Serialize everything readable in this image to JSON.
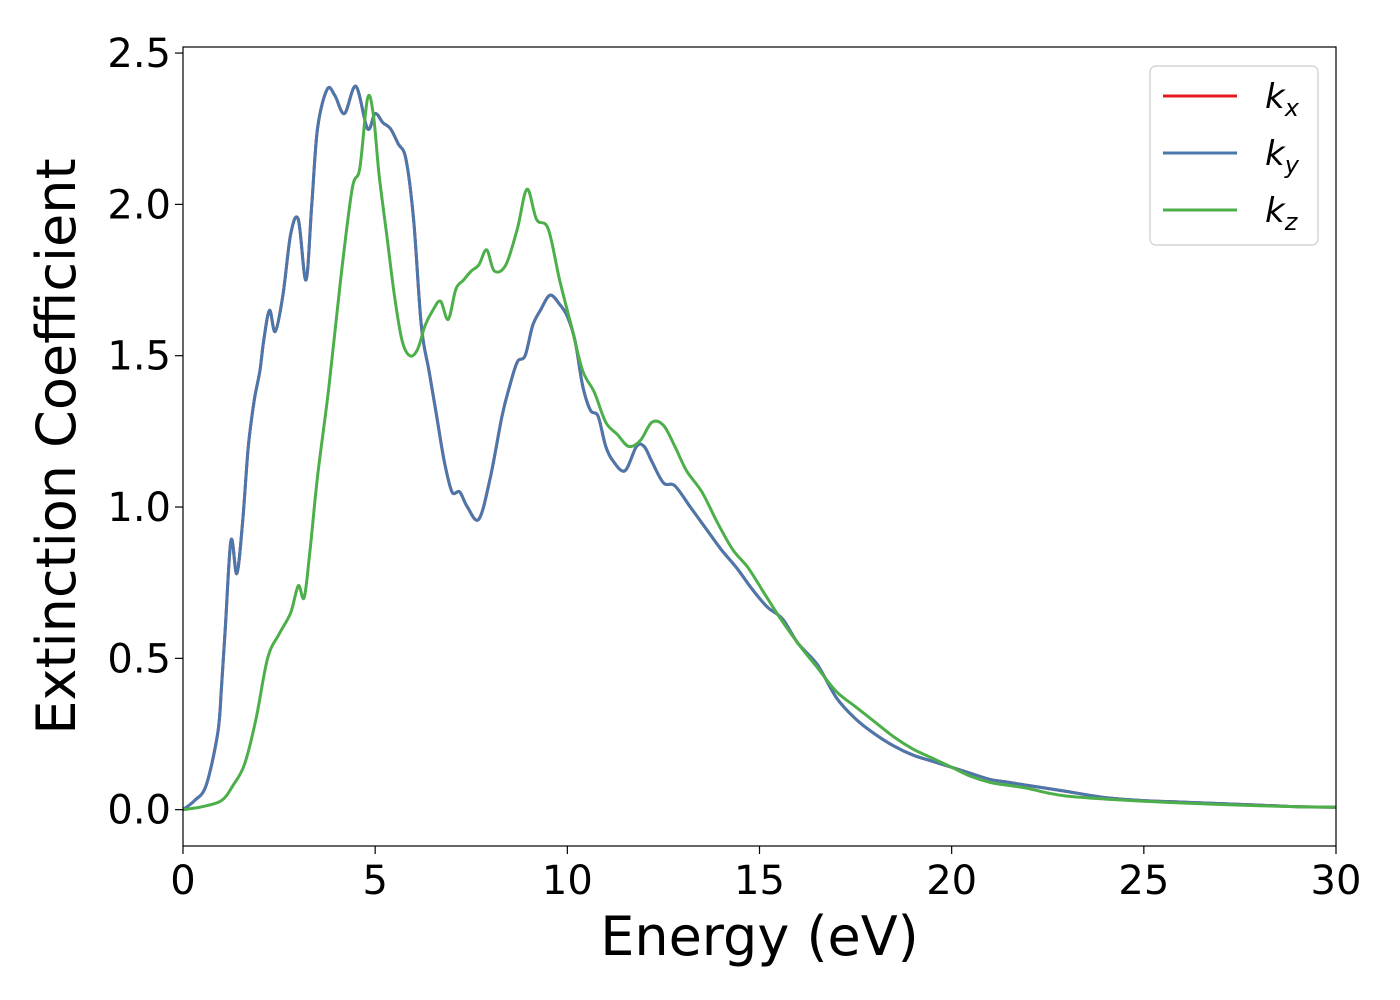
{
  "chart_data": {
    "type": "line",
    "title": "",
    "xlabel": "Energy (eV)",
    "ylabel": "Extinction Coefficient",
    "xlim": [
      0,
      30
    ],
    "ylim": [
      -0.12,
      2.52
    ],
    "xticks": [
      0,
      5,
      10,
      15,
      20,
      25,
      30
    ],
    "xtick_labels": [
      "0",
      "5",
      "10",
      "15",
      "20",
      "25",
      "30"
    ],
    "yticks": [
      0.0,
      0.5,
      1.0,
      1.5,
      2.0,
      2.5
    ],
    "ytick_labels": [
      "0.0",
      "0.5",
      "1.0",
      "1.5",
      "2.0",
      "2.5"
    ],
    "grid": false,
    "legend_position": "top-right",
    "series": [
      {
        "name": "k_x",
        "legend_main": "k",
        "legend_sub": "x",
        "color": "#e41a1c",
        "x": [
          0,
          0.3,
          0.6,
          0.9,
          1.0,
          1.1,
          1.25,
          1.4,
          1.55,
          1.7,
          1.85,
          2.0,
          2.1,
          2.25,
          2.4,
          2.6,
          2.8,
          3.0,
          3.2,
          3.35,
          3.5,
          3.75,
          3.95,
          4.2,
          4.5,
          4.8,
          5.0,
          5.2,
          5.4,
          5.6,
          5.8,
          6.0,
          6.2,
          6.4,
          6.6,
          6.8,
          7.0,
          7.2,
          7.4,
          7.7,
          8.0,
          8.3,
          8.5,
          8.7,
          8.9,
          9.1,
          9.3,
          9.55,
          9.8,
          10.0,
          10.2,
          10.4,
          10.6,
          10.8,
          11.0,
          11.2,
          11.5,
          11.8,
          12.0,
          12.2,
          12.5,
          12.8,
          13.2,
          13.6,
          14.0,
          14.4,
          14.8,
          15.2,
          15.6,
          16.0,
          16.5,
          17.0,
          17.5,
          18.0,
          18.5,
          19.0,
          19.5,
          20.0,
          20.5,
          21.0,
          21.5,
          22.0,
          22.5,
          23.0,
          24.0,
          25.0,
          26.0,
          27.0,
          28.0,
          29.0,
          30.0
        ],
        "y": [
          0.0,
          0.03,
          0.08,
          0.25,
          0.4,
          0.6,
          0.89,
          0.78,
          0.95,
          1.2,
          1.35,
          1.45,
          1.55,
          1.65,
          1.58,
          1.7,
          1.9,
          1.95,
          1.75,
          2.0,
          2.25,
          2.38,
          2.36,
          2.3,
          2.39,
          2.25,
          2.3,
          2.27,
          2.25,
          2.2,
          2.15,
          1.95,
          1.6,
          1.45,
          1.3,
          1.15,
          1.05,
          1.05,
          1.0,
          0.96,
          1.1,
          1.3,
          1.4,
          1.48,
          1.5,
          1.6,
          1.65,
          1.7,
          1.67,
          1.63,
          1.55,
          1.4,
          1.32,
          1.3,
          1.2,
          1.15,
          1.12,
          1.2,
          1.2,
          1.15,
          1.08,
          1.07,
          1.0,
          0.93,
          0.86,
          0.8,
          0.73,
          0.67,
          0.63,
          0.55,
          0.48,
          0.37,
          0.3,
          0.25,
          0.21,
          0.18,
          0.16,
          0.14,
          0.12,
          0.1,
          0.09,
          0.08,
          0.07,
          0.06,
          0.04,
          0.03,
          0.025,
          0.02,
          0.015,
          0.01,
          0.008
        ]
      },
      {
        "name": "k_y",
        "legend_main": "k",
        "legend_sub": "y",
        "color": "#4a78ad",
        "x": [
          0,
          0.3,
          0.6,
          0.9,
          1.0,
          1.1,
          1.25,
          1.4,
          1.55,
          1.7,
          1.85,
          2.0,
          2.1,
          2.25,
          2.4,
          2.6,
          2.8,
          3.0,
          3.2,
          3.35,
          3.5,
          3.75,
          3.95,
          4.2,
          4.5,
          4.8,
          5.0,
          5.2,
          5.4,
          5.6,
          5.8,
          6.0,
          6.2,
          6.4,
          6.6,
          6.8,
          7.0,
          7.2,
          7.4,
          7.7,
          8.0,
          8.3,
          8.5,
          8.7,
          8.9,
          9.1,
          9.3,
          9.55,
          9.8,
          10.0,
          10.2,
          10.4,
          10.6,
          10.8,
          11.0,
          11.2,
          11.5,
          11.8,
          12.0,
          12.2,
          12.5,
          12.8,
          13.2,
          13.6,
          14.0,
          14.4,
          14.8,
          15.2,
          15.6,
          16.0,
          16.5,
          17.0,
          17.5,
          18.0,
          18.5,
          19.0,
          19.5,
          20.0,
          20.5,
          21.0,
          21.5,
          22.0,
          22.5,
          23.0,
          24.0,
          25.0,
          26.0,
          27.0,
          28.0,
          29.0,
          30.0
        ],
        "y": [
          0.0,
          0.03,
          0.08,
          0.25,
          0.4,
          0.6,
          0.89,
          0.78,
          0.95,
          1.2,
          1.35,
          1.45,
          1.55,
          1.65,
          1.58,
          1.7,
          1.9,
          1.95,
          1.75,
          2.0,
          2.25,
          2.38,
          2.36,
          2.3,
          2.39,
          2.25,
          2.3,
          2.27,
          2.25,
          2.2,
          2.15,
          1.95,
          1.6,
          1.45,
          1.3,
          1.15,
          1.05,
          1.05,
          1.0,
          0.96,
          1.1,
          1.3,
          1.4,
          1.48,
          1.5,
          1.6,
          1.65,
          1.7,
          1.67,
          1.63,
          1.55,
          1.4,
          1.32,
          1.3,
          1.2,
          1.15,
          1.12,
          1.2,
          1.2,
          1.15,
          1.08,
          1.07,
          1.0,
          0.93,
          0.86,
          0.8,
          0.73,
          0.67,
          0.63,
          0.55,
          0.48,
          0.37,
          0.3,
          0.25,
          0.21,
          0.18,
          0.16,
          0.14,
          0.12,
          0.1,
          0.09,
          0.08,
          0.07,
          0.06,
          0.04,
          0.03,
          0.025,
          0.02,
          0.015,
          0.01,
          0.008
        ]
      },
      {
        "name": "k_z",
        "legend_main": "k",
        "legend_sub": "z",
        "color": "#4daf4a",
        "x": [
          0,
          0.5,
          1.0,
          1.3,
          1.6,
          1.9,
          2.2,
          2.5,
          2.8,
          3.0,
          3.15,
          3.3,
          3.5,
          3.8,
          4.1,
          4.4,
          4.6,
          4.8,
          4.95,
          5.1,
          5.3,
          5.5,
          5.7,
          5.9,
          6.1,
          6.3,
          6.5,
          6.7,
          6.9,
          7.1,
          7.3,
          7.5,
          7.7,
          7.9,
          8.1,
          8.4,
          8.7,
          8.95,
          9.2,
          9.5,
          9.8,
          10.1,
          10.4,
          10.7,
          11.0,
          11.3,
          11.6,
          11.9,
          12.2,
          12.5,
          12.8,
          13.1,
          13.5,
          13.9,
          14.3,
          14.7,
          15.1,
          15.5,
          16.0,
          16.5,
          17.0,
          17.5,
          18.0,
          18.5,
          19.0,
          19.5,
          20.0,
          20.5,
          21.0,
          21.5,
          22.0,
          22.5,
          23.0,
          24.0,
          25.0,
          26.0,
          27.0,
          28.0,
          29.0,
          30.0
        ],
        "y": [
          0.0,
          0.01,
          0.03,
          0.08,
          0.15,
          0.3,
          0.5,
          0.58,
          0.65,
          0.74,
          0.7,
          0.85,
          1.1,
          1.4,
          1.75,
          2.05,
          2.12,
          2.35,
          2.3,
          2.1,
          1.9,
          1.7,
          1.55,
          1.5,
          1.52,
          1.6,
          1.65,
          1.68,
          1.62,
          1.72,
          1.75,
          1.78,
          1.8,
          1.85,
          1.78,
          1.8,
          1.92,
          2.05,
          1.95,
          1.92,
          1.75,
          1.6,
          1.45,
          1.38,
          1.28,
          1.24,
          1.2,
          1.22,
          1.28,
          1.27,
          1.2,
          1.12,
          1.05,
          0.95,
          0.86,
          0.8,
          0.72,
          0.64,
          0.55,
          0.47,
          0.39,
          0.34,
          0.29,
          0.24,
          0.2,
          0.17,
          0.14,
          0.11,
          0.09,
          0.08,
          0.07,
          0.055,
          0.045,
          0.035,
          0.028,
          0.022,
          0.017,
          0.013,
          0.01,
          0.008
        ]
      }
    ]
  }
}
